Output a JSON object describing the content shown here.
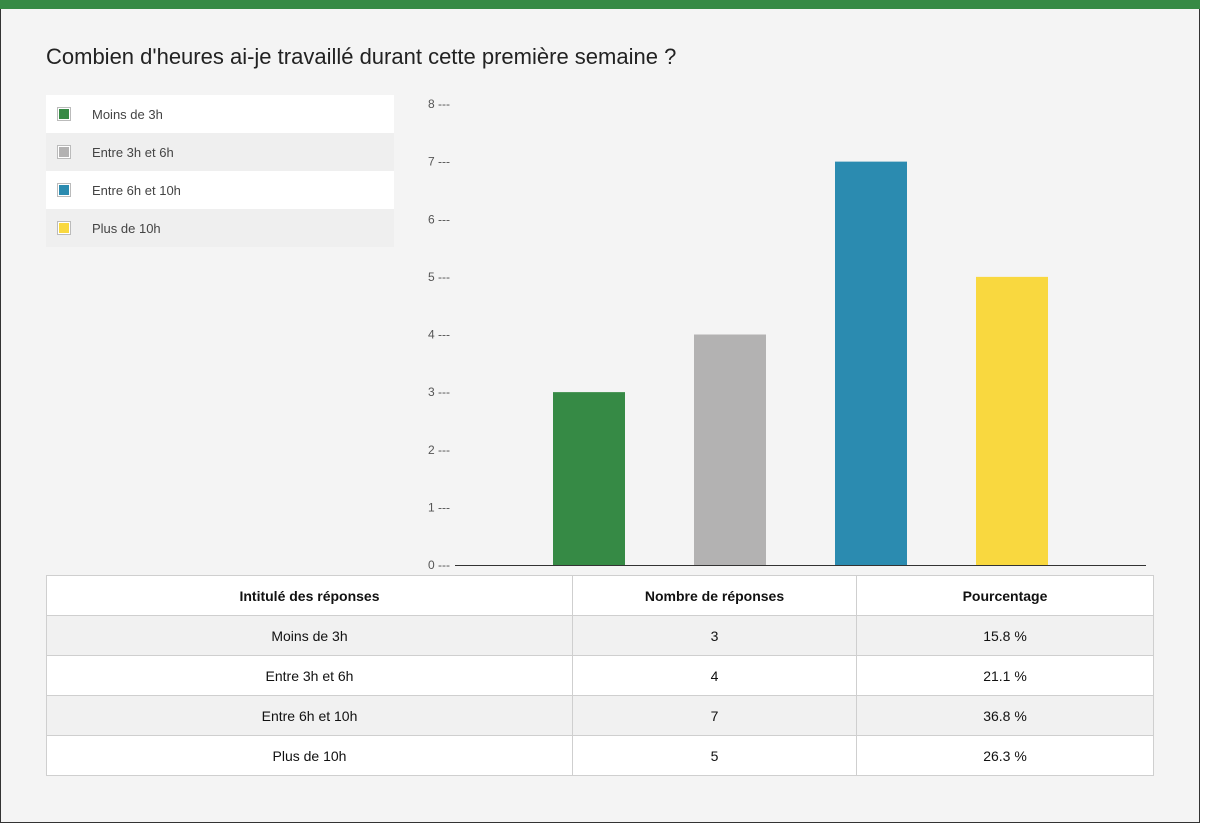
{
  "title": "Combien d'heures ai-je travaillé durant cette première semaine ?",
  "colors": {
    "accent_bar": "#368a45",
    "series": [
      "#368a45",
      "#b3b2b2",
      "#2b8bb0",
      "#f9d83f"
    ]
  },
  "chart_data": {
    "type": "bar",
    "title": "Combien d'heures ai-je travaillé durant cette première semaine ?",
    "categories": [
      "Moins de 3h",
      "Entre 3h et 6h",
      "Entre 6h et 10h",
      "Plus de 10h"
    ],
    "values": [
      3,
      4,
      7,
      5
    ],
    "xlabel": "",
    "ylabel": "",
    "ylim": [
      0,
      8
    ],
    "yticks": [
      0,
      1,
      2,
      3,
      4,
      5,
      6,
      7,
      8
    ],
    "ytick_labels": [
      "0 ---",
      "1 ---",
      "2 ---",
      "3 ---",
      "4 ---",
      "5 ---",
      "6 ---",
      "7 ---",
      "8 ---"
    ],
    "grid": false,
    "legend_position": "left"
  },
  "legend": [
    {
      "label": "Moins de 3h",
      "color": "#368a45"
    },
    {
      "label": "Entre 3h et 6h",
      "color": "#b3b2b2"
    },
    {
      "label": "Entre 6h et 10h",
      "color": "#2b8bb0"
    },
    {
      "label": "Plus de 10h",
      "color": "#f9d83f"
    }
  ],
  "table": {
    "headers": [
      "Intitulé des réponses",
      "Nombre de réponses",
      "Pourcentage"
    ],
    "rows": [
      [
        "Moins de 3h",
        "3",
        "15.8 %"
      ],
      [
        "Entre 3h et 6h",
        "4",
        "21.1 %"
      ],
      [
        "Entre 6h et 10h",
        "7",
        "36.8 %"
      ],
      [
        "Plus de 10h",
        "5",
        "26.3 %"
      ]
    ]
  }
}
